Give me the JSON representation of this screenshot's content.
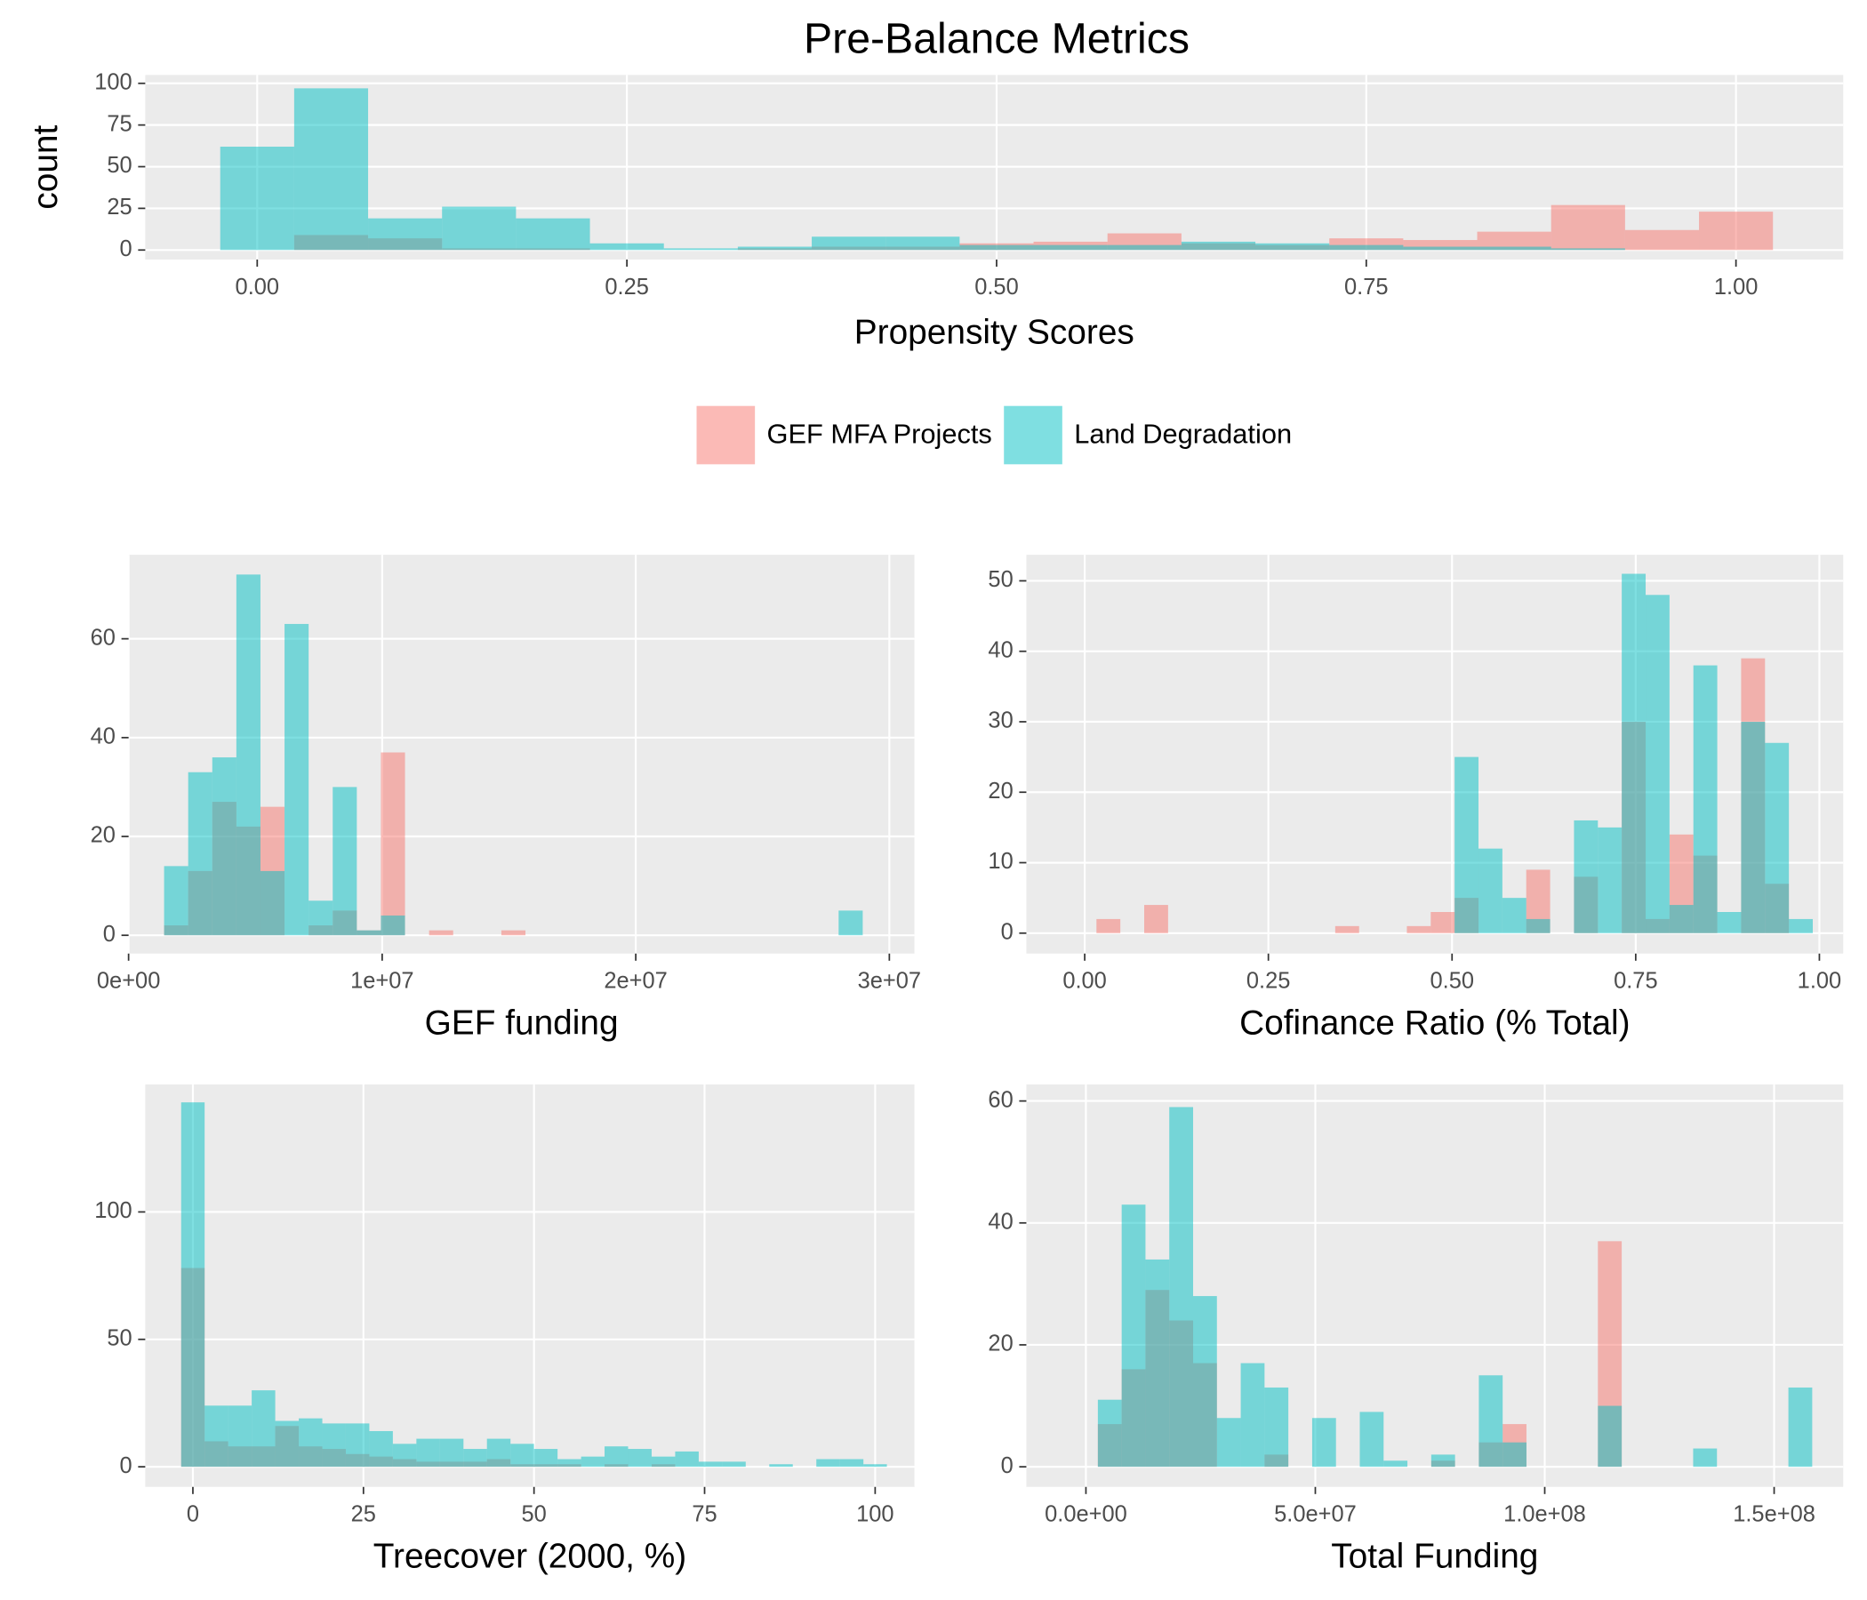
{
  "title": "Pre-Balance Metrics",
  "chart_data": [
    {
      "type": "histogram",
      "x_label": "Propensity Scores",
      "y_label": "count",
      "alpha": 0.5,
      "bins": [
        -0.025,
        0.025,
        0.075,
        0.125,
        0.175,
        0.225,
        0.275,
        0.325,
        0.375,
        0.425,
        0.475,
        0.525,
        0.575,
        0.625,
        0.675,
        0.725,
        0.775,
        0.825,
        0.875,
        0.925,
        0.975,
        1.025
      ],
      "series": [
        {
          "name": "GEF MFA Projects",
          "color": "#F8766D",
          "values": [
            0,
            9,
            7,
            1,
            1,
            0,
            0,
            1,
            2,
            2,
            4,
            5,
            10,
            4,
            3,
            7,
            6,
            11,
            27,
            12,
            23
          ]
        },
        {
          "name": "Land Degradation",
          "color": "#00BFC4",
          "values": [
            62,
            97,
            19,
            26,
            19,
            4,
            1,
            2,
            8,
            8,
            3,
            3,
            3,
            5,
            4,
            3,
            2,
            2,
            1,
            0,
            0
          ]
        }
      ],
      "xlim": [
        -0.0757,
        1.0725
      ],
      "ylim": [
        -5.7,
        105
      ],
      "xticks": [
        {
          "value": 0,
          "label": "0.00"
        },
        {
          "value": 0.25,
          "label": "0.25"
        },
        {
          "value": 0.5,
          "label": "0.50"
        },
        {
          "value": 0.75,
          "label": "0.75"
        },
        {
          "value": 1,
          "label": "1.00"
        }
      ],
      "yticks": [
        0,
        25,
        50,
        75,
        100
      ],
      "grid": true,
      "legend": "bottom"
    },
    {
      "type": "histogram",
      "x_label": "GEF funding",
      "alpha": 0.5,
      "bins": [
        1400000,
        2350000,
        3300000,
        4250000,
        5200000,
        6150000,
        7100000,
        8050000,
        9000000,
        9950000,
        10900000,
        11850000,
        12800000,
        13750000,
        14700000,
        15650000,
        16600000,
        17550000,
        18500000,
        19450000,
        20400000,
        21350000,
        22300000,
        23250000,
        24200000,
        25150000,
        26100000,
        27050000,
        28000000,
        28950000
      ],
      "series": [
        {
          "name": "GEF MFA Projects",
          "color": "#F8766D",
          "values": [
            2,
            13,
            27,
            22,
            26,
            0,
            2,
            5,
            1,
            37,
            0,
            1,
            0,
            0,
            1,
            0,
            0,
            0,
            0,
            0,
            0,
            0,
            0,
            0,
            0,
            0,
            0,
            0,
            0
          ]
        },
        {
          "name": "Land Degradation",
          "color": "#00BFC4",
          "values": [
            14,
            33,
            36,
            73,
            13,
            63,
            7,
            30,
            1,
            4,
            0,
            0,
            0,
            0,
            0,
            0,
            0,
            0,
            0,
            0,
            0,
            0,
            0,
            0,
            0,
            0,
            0,
            0,
            5
          ]
        }
      ],
      "xlim": [
        0,
        30990000
      ],
      "ylim": [
        -3.7,
        77
      ],
      "xticks": [
        {
          "value": 0,
          "label": "0e+00"
        },
        {
          "value": 10000000,
          "label": "1e+07"
        },
        {
          "value": 20000000,
          "label": "2e+07"
        },
        {
          "value": 30000000,
          "label": "3e+07"
        }
      ],
      "yticks": [
        0,
        20,
        40,
        60
      ],
      "grid": true
    },
    {
      "type": "histogram",
      "x_label": "Cofinance Ratio (% Total)",
      "alpha": 0.5,
      "bins": [
        0.016,
        0.0485,
        0.081,
        0.1135,
        0.146,
        0.1785,
        0.211,
        0.2435,
        0.276,
        0.3085,
        0.341,
        0.3735,
        0.406,
        0.4385,
        0.471,
        0.5035,
        0.536,
        0.5685,
        0.601,
        0.6335,
        0.666,
        0.6985,
        0.731,
        0.7635,
        0.796,
        0.8285,
        0.861,
        0.8935,
        0.926,
        0.9585,
        0.991
      ],
      "series": [
        {
          "name": "GEF MFA Projects",
          "color": "#F8766D",
          "values": [
            2,
            0,
            4,
            0,
            0,
            0,
            0,
            0,
            0,
            0,
            1,
            0,
            0,
            1,
            3,
            5,
            0,
            0,
            9,
            0,
            8,
            0,
            30,
            2,
            14,
            11,
            0,
            39,
            7,
            0
          ]
        },
        {
          "name": "Land Degradation",
          "color": "#00BFC4",
          "values": [
            0,
            0,
            0,
            0,
            0,
            0,
            0,
            0,
            0,
            0,
            0,
            0,
            0,
            0,
            0,
            25,
            12,
            5,
            2,
            0,
            16,
            15,
            51,
            48,
            4,
            38,
            3,
            30,
            27,
            2
          ]
        }
      ],
      "xlim": [
        -0.0794,
        1.0324
      ],
      "ylim": [
        -2.9,
        53.7
      ],
      "xticks": [
        {
          "value": 0,
          "label": "0.00"
        },
        {
          "value": 0.25,
          "label": "0.25"
        },
        {
          "value": 0.5,
          "label": "0.50"
        },
        {
          "value": 0.75,
          "label": "0.75"
        },
        {
          "value": 1,
          "label": "1.00"
        }
      ],
      "yticks": [
        0,
        10,
        20,
        30,
        40,
        50
      ],
      "grid": true
    },
    {
      "type": "histogram",
      "x_label": "Treecover (2000, %)",
      "alpha": 0.5,
      "bins": [
        -1.72,
        1.72,
        5.17,
        8.62,
        12.07,
        15.52,
        18.97,
        22.41,
        25.86,
        29.31,
        32.76,
        36.21,
        39.66,
        43.1,
        46.55,
        50,
        53.45,
        56.9,
        60.34,
        63.79,
        67.24,
        70.69,
        74.14,
        77.59,
        81.03,
        84.48,
        87.93,
        91.38,
        94.83,
        98.28,
        101.72
      ],
      "series": [
        {
          "name": "GEF MFA Projects",
          "color": "#F8766D",
          "values": [
            78,
            10,
            8,
            8,
            16,
            8,
            7,
            5,
            4,
            3,
            2,
            2,
            2,
            3,
            1,
            1,
            1,
            0,
            1,
            0,
            1,
            0,
            0,
            0,
            0,
            0,
            0,
            0,
            0,
            0
          ]
        },
        {
          "name": "Land Degradation",
          "color": "#00BFC4",
          "values": [
            143,
            24,
            24,
            30,
            18,
            19,
            17,
            17,
            14,
            9,
            11,
            11,
            7,
            11,
            9,
            7,
            3,
            4,
            8,
            7,
            4,
            6,
            2,
            2,
            0,
            1,
            0,
            3,
            3,
            1
          ]
        }
      ],
      "xlim": [
        -6.98,
        105.76
      ],
      "ylim": [
        -7.9,
        150
      ],
      "xticks": [
        0,
        25,
        50,
        75,
        100
      ],
      "yticks": [
        0,
        50,
        100
      ],
      "grid": true
    },
    {
      "type": "histogram",
      "x_label": "Total Funding",
      "alpha": 0.5,
      "bins": [
        2600000,
        7790000,
        12980000,
        18170000,
        23360000,
        28550000,
        33740000,
        38930000,
        44120000,
        49310000,
        54500000,
        59690000,
        64880000,
        70070000,
        75260000,
        80450000,
        85640000,
        90830000,
        96020000,
        101210000,
        106400000,
        111590000,
        116780000,
        121970000,
        127160000,
        132350000,
        137540000,
        142730000,
        147920000,
        153110000,
        158300000
      ],
      "series": [
        {
          "name": "GEF MFA Projects",
          "color": "#F8766D",
          "values": [
            7,
            16,
            29,
            24,
            17,
            0,
            0,
            2,
            0,
            0,
            0,
            0,
            0,
            0,
            1,
            0,
            4,
            7,
            0,
            0,
            0,
            37,
            0,
            0,
            0,
            0,
            0,
            0,
            0,
            0
          ]
        },
        {
          "name": "Land Degradation",
          "color": "#00BFC4",
          "values": [
            11,
            43,
            34,
            59,
            28,
            8,
            17,
            13,
            0,
            8,
            0,
            9,
            1,
            0,
            2,
            0,
            15,
            4,
            0,
            0,
            0,
            10,
            0,
            0,
            0,
            3,
            0,
            0,
            0,
            13
          ]
        }
      ],
      "xlim": [
        -12980000,
        165050000
      ],
      "ylim": [
        -3.3,
        62.7
      ],
      "xticks": [
        {
          "value": 0,
          "label": "0.0e+00"
        },
        {
          "value": 50000000,
          "label": "5.0e+07"
        },
        {
          "value": 100000000,
          "label": "1.0e+08"
        },
        {
          "value": 150000000,
          "label": "1.5e+08"
        }
      ],
      "yticks": [
        0,
        20,
        40,
        60
      ],
      "grid": true
    }
  ]
}
